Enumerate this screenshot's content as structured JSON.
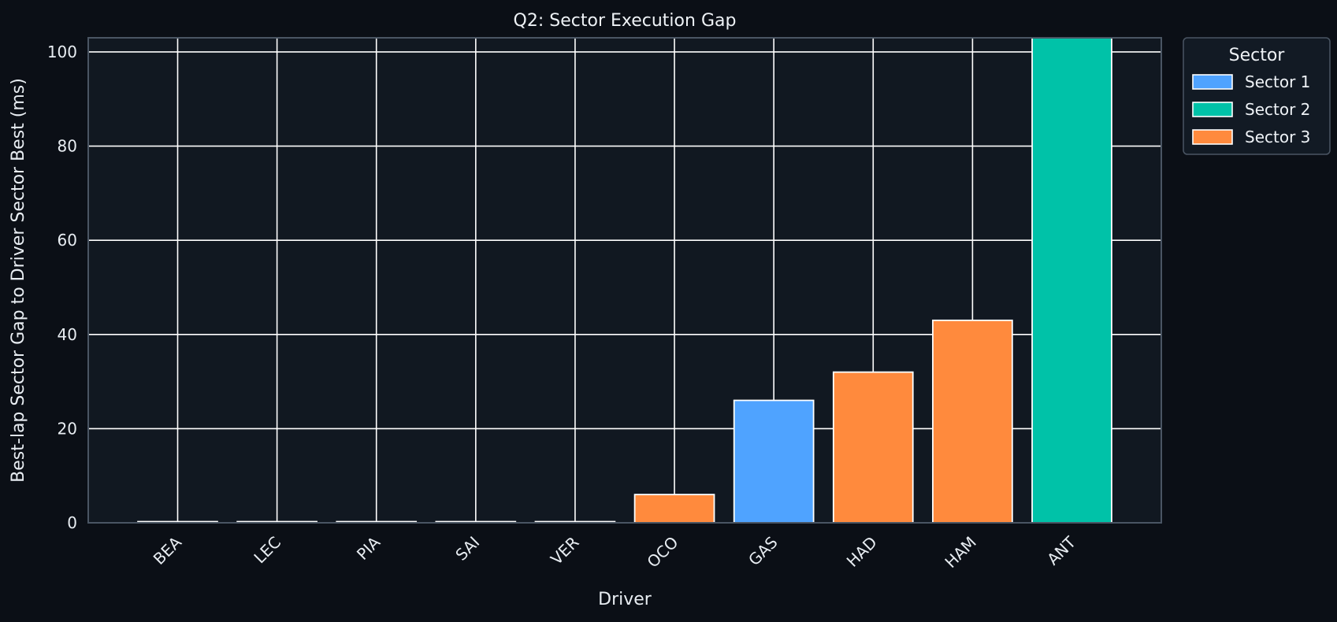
{
  "chart_data": {
    "type": "bar",
    "title": "Q2: Sector Execution Gap",
    "xlabel": "Driver",
    "ylabel": "Best-lap Sector Gap to Driver Sector Best (ms)",
    "categories": [
      "BEA",
      "LEC",
      "PIA",
      "SAI",
      "VER",
      "OCO",
      "GAS",
      "HAD",
      "HAM",
      "ANT"
    ],
    "values": [
      0,
      0,
      0,
      0,
      0,
      6,
      26,
      32,
      43,
      103
    ],
    "sectors": [
      "Sector 3",
      "Sector 3",
      "Sector 3",
      "Sector 3",
      "Sector 3",
      "Sector 3",
      "Sector 1",
      "Sector 3",
      "Sector 3",
      "Sector 2"
    ],
    "ylim": [
      0,
      103
    ],
    "yticks": [
      0,
      20,
      40,
      60,
      80,
      100
    ],
    "grid": true,
    "legend": {
      "title": "Sector",
      "placement": "outside-top-right",
      "entries": [
        {
          "name": "Sector 1",
          "color": "#4fa3ff"
        },
        {
          "name": "Sector 2",
          "color": "#00c2a8"
        },
        {
          "name": "Sector 3",
          "color": "#ff8a3d"
        }
      ]
    },
    "colors": {
      "background": "#0b0f16",
      "plot_background": "#111821",
      "grid": "#ffffff"
    }
  }
}
